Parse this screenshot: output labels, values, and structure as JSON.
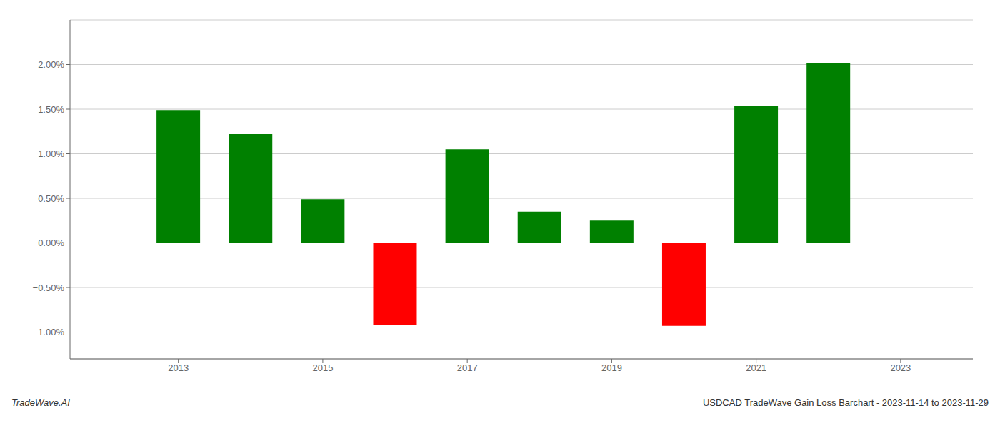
{
  "chart_data": {
    "type": "bar",
    "x": [
      2013,
      2014,
      2015,
      2016,
      2017,
      2018,
      2019,
      2020,
      2021,
      2022
    ],
    "values": [
      0.0149,
      0.0122,
      0.0049,
      -0.0092,
      0.0105,
      0.0035,
      0.0025,
      -0.0093,
      0.0154,
      0.0202
    ],
    "colors": [
      "#008000",
      "#008000",
      "#008000",
      "#ff0000",
      "#008000",
      "#008000",
      "#008000",
      "#ff0000",
      "#008000",
      "#008000"
    ],
    "xlim": [
      2011.5,
      2024.0
    ],
    "xticks": [
      2013,
      2015,
      2017,
      2019,
      2021,
      2023
    ],
    "ylim": [
      -0.013,
      0.025
    ],
    "yticks": [
      {
        "value": -0.01,
        "label": "−1.00%"
      },
      {
        "value": -0.005,
        "label": "−0.50%"
      },
      {
        "value": 0.0,
        "label": "0.00%"
      },
      {
        "value": 0.005,
        "label": "0.50%"
      },
      {
        "value": 0.01,
        "label": "1.00%"
      },
      {
        "value": 0.015,
        "label": "1.50%"
      },
      {
        "value": 0.02,
        "label": "2.00%"
      }
    ],
    "grid": true,
    "annotations": [
      "TradeWave.AI",
      "USDCAD TradeWave Gain Loss Barchart - 2023-11-14 to 2023-11-29"
    ]
  }
}
